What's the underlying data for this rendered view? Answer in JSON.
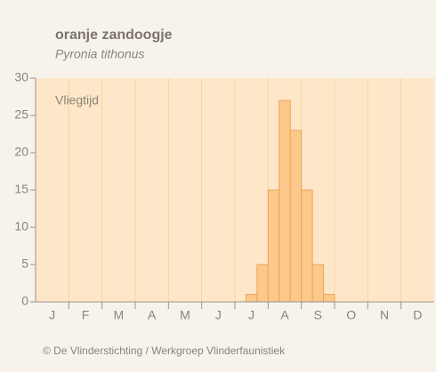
{
  "chart_data": {
    "type": "bar",
    "title": "oranje zandoogje",
    "subtitle": "Pyronia tithonus",
    "annotation": "Vliegtijd",
    "month_labels": [
      "J",
      "F",
      "M",
      "A",
      "M",
      "J",
      "J",
      "A",
      "S",
      "O",
      "N",
      "D"
    ],
    "values": [
      0,
      0,
      0,
      0,
      0,
      0,
      0,
      0,
      0,
      0,
      0,
      0,
      0,
      0,
      0,
      0,
      0,
      0,
      0,
      1,
      5,
      15,
      27,
      23,
      15,
      5,
      1,
      0,
      0,
      0,
      0,
      0,
      0,
      0,
      0,
      0
    ],
    "color": "#fcc98a",
    "ylim": [
      0,
      30
    ],
    "yticks": [
      0,
      5,
      10,
      15,
      20,
      25,
      30
    ],
    "grid": true,
    "footer": "© De Vlinderstichting / Werkgroep Vlinderfaunistiek"
  }
}
